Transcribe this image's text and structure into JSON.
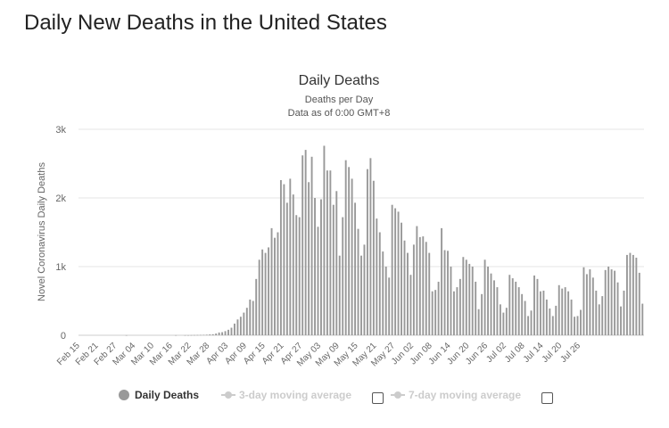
{
  "page": {
    "heading": "Daily New Deaths in the United States"
  },
  "legend": {
    "daily_deaths": "Daily Deaths",
    "three_day": "3-day moving average",
    "seven_day": "7-day moving average"
  },
  "colors": {
    "bar": "#999999",
    "grid": "#e6e6e6",
    "axis_text": "#666666",
    "inactive": "#cccccc"
  },
  "chart_data": {
    "type": "bar",
    "title": "Daily Deaths",
    "subtitle_lines": [
      "Deaths per Day",
      "Data as of 0:00 GMT+8"
    ],
    "ylabel": "Novel Coronavirus Daily Deaths",
    "xlabel": "",
    "ylim": [
      0,
      3000
    ],
    "yticks": [
      0,
      1000,
      2000,
      3000
    ],
    "ytick_labels": [
      "0",
      "1k",
      "2k",
      "3k"
    ],
    "grid": true,
    "start_date": "Feb 15",
    "xtick_labels": [
      "Feb 15",
      "Feb 21",
      "Feb 27",
      "Mar 04",
      "Mar 10",
      "Mar 16",
      "Mar 22",
      "Mar 28",
      "Apr 03",
      "Apr 09",
      "Apr 15",
      "Apr 21",
      "Apr 27",
      "May 03",
      "May 09",
      "May 15",
      "May 21",
      "May 27",
      "Jun 02",
      "Jun 08",
      "Jun 14",
      "Jun 20",
      "Jun 26",
      "Jul 02",
      "Jul 08",
      "Jul 14",
      "Jul 20",
      "Jul 26"
    ],
    "series": [
      {
        "name": "Daily Deaths",
        "values": [
          0,
          0,
          0,
          0,
          0,
          0,
          0,
          0,
          0,
          0,
          0,
          0,
          0,
          0,
          0,
          1,
          0,
          0,
          0,
          0,
          0,
          0,
          0,
          0,
          0,
          0,
          0,
          0,
          0,
          0,
          0,
          1,
          0,
          0,
          1,
          1,
          2,
          3,
          4,
          5,
          6,
          8,
          12,
          15,
          25,
          40,
          45,
          60,
          80,
          110,
          170,
          230,
          270,
          330,
          400,
          520,
          500,
          820,
          1100,
          1250,
          1200,
          1280,
          1560,
          1420,
          1500,
          2260,
          2200,
          1930,
          2280,
          2050,
          1750,
          1720,
          2620,
          2700,
          2230,
          2600,
          2000,
          1580,
          1980,
          2760,
          2400,
          2400,
          1900,
          2100,
          1160,
          1720,
          2550,
          2450,
          2280,
          1930,
          1550,
          1160,
          1320,
          2420,
          2580,
          2250,
          1700,
          1500,
          1220,
          1000,
          840,
          1900,
          1850,
          1800,
          1640,
          1380,
          1200,
          880,
          1320,
          1590,
          1430,
          1440,
          1360,
          1200,
          640,
          660,
          780,
          1560,
          1240,
          1230,
          1000,
          640,
          700,
          820,
          1140,
          1100,
          1040,
          1000,
          780,
          380,
          600,
          1100,
          1000,
          900,
          800,
          700,
          450,
          330,
          400,
          880,
          830,
          780,
          700,
          600,
          500,
          280,
          360,
          870,
          820,
          640,
          650,
          520,
          390,
          280,
          430,
          730,
          680,
          700,
          640,
          520,
          270,
          280,
          370,
          990,
          890,
          960,
          840,
          650,
          450,
          570,
          950,
          1000,
          960,
          940,
          770,
          420,
          650,
          1170,
          1200,
          1170,
          1130,
          910,
          460
        ]
      }
    ]
  }
}
